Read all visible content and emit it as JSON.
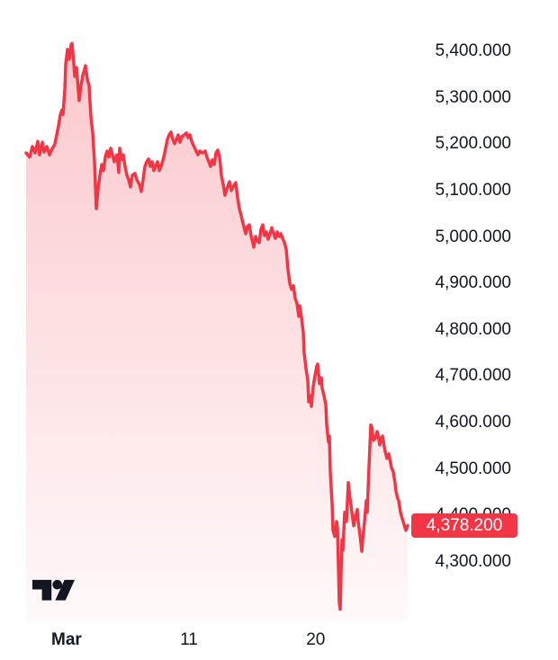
{
  "widget": {
    "background_color": "#ffffff",
    "text_color": "#131722",
    "logo_label": "TradingView",
    "logo_color": "#131722"
  },
  "chart_data": {
    "type": "area",
    "title": "",
    "xlabel": "",
    "ylabel": "",
    "grid": false,
    "legend_position": "none",
    "line_color": "#F23645",
    "fill_top_color": "rgba(242,54,69,0.28)",
    "fill_bottom_color": "rgba(242,54,69,0.03)",
    "badge_color": "#F23645",
    "last_price": 4378.2,
    "last_price_label": "4,378.200",
    "ylim": [
      4174,
      5433
    ],
    "y_axis": {
      "side": "right",
      "tick_values": [
        5400,
        5300,
        5200,
        5100,
        5000,
        4900,
        4800,
        4700,
        4600,
        4500,
        4400,
        4300
      ],
      "tick_labels": [
        "5,400.000",
        "5,300.000",
        "5,200.000",
        "5,100.000",
        "5,000.000",
        "4,900.000",
        "4,800.000",
        "4,700.000",
        "4,600.000",
        "4,500.000",
        "4,400.000",
        "4,300.000"
      ]
    },
    "x_axis": {
      "tick_labels": [
        {
          "label": "Mar",
          "f": 0.106,
          "bold": true
        },
        {
          "label": "11",
          "f": 0.427,
          "bold": false
        },
        {
          "label": "20",
          "f": 0.759,
          "bold": false
        }
      ]
    },
    "series": [
      {
        "name": "price",
        "points": [
          [
            0.0,
            5181
          ],
          [
            0.0094,
            5172
          ],
          [
            0.0165,
            5195
          ],
          [
            0.0236,
            5181
          ],
          [
            0.0307,
            5206
          ],
          [
            0.0354,
            5177
          ],
          [
            0.0425,
            5204
          ],
          [
            0.0472,
            5183
          ],
          [
            0.0542,
            5195
          ],
          [
            0.0613,
            5177
          ],
          [
            0.0684,
            5190
          ],
          [
            0.0755,
            5200
          ],
          [
            0.0802,
            5220
          ],
          [
            0.0849,
            5239
          ],
          [
            0.0896,
            5263
          ],
          [
            0.0943,
            5274
          ],
          [
            0.0967,
            5264
          ],
          [
            0.1014,
            5317
          ],
          [
            0.1038,
            5371
          ],
          [
            0.1085,
            5404
          ],
          [
            0.1132,
            5383
          ],
          [
            0.1179,
            5414
          ],
          [
            0.1203,
            5417
          ],
          [
            0.125,
            5375
          ],
          [
            0.1274,
            5346
          ],
          [
            0.1321,
            5365
          ],
          [
            0.1368,
            5317
          ],
          [
            0.1392,
            5294
          ],
          [
            0.1439,
            5326
          ],
          [
            0.1486,
            5348
          ],
          [
            0.1557,
            5369
          ],
          [
            0.1604,
            5340
          ],
          [
            0.1651,
            5326
          ],
          [
            0.1698,
            5259
          ],
          [
            0.1745,
            5224
          ],
          [
            0.1792,
            5162
          ],
          [
            0.184,
            5061
          ],
          [
            0.1887,
            5104
          ],
          [
            0.1934,
            5133
          ],
          [
            0.1981,
            5156
          ],
          [
            0.2028,
            5143
          ],
          [
            0.2075,
            5172
          ],
          [
            0.2123,
            5185
          ],
          [
            0.217,
            5172
          ],
          [
            0.2217,
            5191
          ],
          [
            0.2264,
            5177
          ],
          [
            0.2311,
            5162
          ],
          [
            0.2382,
            5177
          ],
          [
            0.2429,
            5139
          ],
          [
            0.2453,
            5191
          ],
          [
            0.25,
            5166
          ],
          [
            0.2547,
            5177
          ],
          [
            0.2594,
            5152
          ],
          [
            0.2642,
            5133
          ],
          [
            0.2689,
            5123
          ],
          [
            0.2736,
            5108
          ],
          [
            0.2783,
            5133
          ],
          [
            0.2854,
            5137
          ],
          [
            0.2901,
            5123
          ],
          [
            0.2972,
            5113
          ],
          [
            0.3019,
            5098
          ],
          [
            0.3066,
            5123
          ],
          [
            0.3113,
            5152
          ],
          [
            0.316,
            5162
          ],
          [
            0.3208,
            5168
          ],
          [
            0.3255,
            5152
          ],
          [
            0.3302,
            5162
          ],
          [
            0.3349,
            5143
          ],
          [
            0.3396,
            5152
          ],
          [
            0.3443,
            5162
          ],
          [
            0.3491,
            5143
          ],
          [
            0.3538,
            5152
          ],
          [
            0.3608,
            5172
          ],
          [
            0.3656,
            5191
          ],
          [
            0.3703,
            5210
          ],
          [
            0.375,
            5220
          ],
          [
            0.3797,
            5226
          ],
          [
            0.3844,
            5210
          ],
          [
            0.3892,
            5201
          ],
          [
            0.3939,
            5210
          ],
          [
            0.3986,
            5220
          ],
          [
            0.4033,
            5204
          ],
          [
            0.408,
            5216
          ],
          [
            0.4151,
            5220
          ],
          [
            0.4198,
            5224
          ],
          [
            0.4245,
            5214
          ],
          [
            0.4292,
            5220
          ],
          [
            0.434,
            5206
          ],
          [
            0.4387,
            5197
          ],
          [
            0.4458,
            5185
          ],
          [
            0.4505,
            5177
          ],
          [
            0.4552,
            5185
          ],
          [
            0.4623,
            5181
          ],
          [
            0.4693,
            5185
          ],
          [
            0.4741,
            5172
          ],
          [
            0.4788,
            5162
          ],
          [
            0.4835,
            5152
          ],
          [
            0.4882,
            5166
          ],
          [
            0.4929,
            5156
          ],
          [
            0.4976,
            5181
          ],
          [
            0.5024,
            5187
          ],
          [
            0.5071,
            5172
          ],
          [
            0.5118,
            5133
          ],
          [
            0.5165,
            5113
          ],
          [
            0.5212,
            5090
          ],
          [
            0.5259,
            5104
          ],
          [
            0.533,
            5119
          ],
          [
            0.5377,
            5100
          ],
          [
            0.5425,
            5108
          ],
          [
            0.5495,
            5117
          ],
          [
            0.5542,
            5084
          ],
          [
            0.559,
            5061
          ],
          [
            0.5637,
            5046
          ],
          [
            0.5684,
            5030
          ],
          [
            0.5755,
            5007
          ],
          [
            0.5802,
            5023
          ],
          [
            0.5849,
            5026
          ],
          [
            0.5896,
            5003
          ],
          [
            0.5967,
            4978
          ],
          [
            0.6014,
            5001
          ],
          [
            0.6061,
            4991
          ],
          [
            0.6108,
            4988
          ],
          [
            0.6156,
            5017
          ],
          [
            0.6203,
            5026
          ],
          [
            0.625,
            5003
          ],
          [
            0.6297,
            5011
          ],
          [
            0.6344,
            4995
          ],
          [
            0.6392,
            5007
          ],
          [
            0.6439,
            5020
          ],
          [
            0.6486,
            5007
          ],
          [
            0.6533,
            4997
          ],
          [
            0.658,
            5011
          ],
          [
            0.6627,
            5001
          ],
          [
            0.6675,
            5007
          ],
          [
            0.6722,
            4997
          ],
          [
            0.6769,
            4988
          ],
          [
            0.6816,
            4974
          ],
          [
            0.6863,
            4930
          ],
          [
            0.6911,
            4900
          ],
          [
            0.6958,
            4887
          ],
          [
            0.7005,
            4895
          ],
          [
            0.7052,
            4868
          ],
          [
            0.7099,
            4856
          ],
          [
            0.7146,
            4829
          ],
          [
            0.717,
            4852
          ],
          [
            0.7217,
            4827
          ],
          [
            0.7264,
            4794
          ],
          [
            0.7288,
            4750
          ],
          [
            0.7335,
            4717
          ],
          [
            0.7382,
            4691
          ],
          [
            0.7406,
            4645
          ],
          [
            0.7453,
            4658
          ],
          [
            0.7476,
            4635
          ],
          [
            0.7524,
            4678
          ],
          [
            0.7571,
            4701
          ],
          [
            0.7618,
            4722
          ],
          [
            0.7642,
            4726
          ],
          [
            0.7689,
            4684
          ],
          [
            0.7736,
            4697
          ],
          [
            0.776,
            4674
          ],
          [
            0.7807,
            4658
          ],
          [
            0.7854,
            4639
          ],
          [
            0.7877,
            4595
          ],
          [
            0.7925,
            4558
          ],
          [
            0.7948,
            4571
          ],
          [
            0.7972,
            4494
          ],
          [
            0.8019,
            4426
          ],
          [
            0.8042,
            4368
          ],
          [
            0.809,
            4355
          ],
          [
            0.8137,
            4387
          ],
          [
            0.816,
            4374
          ],
          [
            0.8208,
            4213
          ],
          [
            0.8231,
            4198
          ],
          [
            0.8278,
            4348
          ],
          [
            0.8302,
            4325
          ],
          [
            0.8349,
            4407
          ],
          [
            0.8396,
            4387
          ],
          [
            0.8443,
            4471
          ],
          [
            0.8491,
            4436
          ],
          [
            0.8538,
            4407
          ],
          [
            0.8585,
            4378
          ],
          [
            0.8632,
            4397
          ],
          [
            0.8679,
            4413
          ],
          [
            0.8703,
            4387
          ],
          [
            0.875,
            4358
          ],
          [
            0.8797,
            4323
          ],
          [
            0.8821,
            4348
          ],
          [
            0.8868,
            4387
          ],
          [
            0.8915,
            4432
          ],
          [
            0.8939,
            4407
          ],
          [
            0.8986,
            4504
          ],
          [
            0.9033,
            4595
          ],
          [
            0.9057,
            4591
          ],
          [
            0.9104,
            4562
          ],
          [
            0.9151,
            4566
          ],
          [
            0.9198,
            4581
          ],
          [
            0.9222,
            4575
          ],
          [
            0.9269,
            4552
          ],
          [
            0.9316,
            4568
          ],
          [
            0.934,
            4571
          ],
          [
            0.9387,
            4548
          ],
          [
            0.9411,
            4538
          ],
          [
            0.9458,
            4523
          ],
          [
            0.9505,
            4533
          ],
          [
            0.9552,
            4513
          ],
          [
            0.9575,
            4503
          ],
          [
            0.9623,
            4494
          ],
          [
            0.967,
            4469
          ],
          [
            0.9693,
            4452
          ],
          [
            0.9741,
            4436
          ],
          [
            0.9764,
            4432
          ],
          [
            0.9811,
            4407
          ],
          [
            0.9858,
            4393
          ],
          [
            0.9882,
            4387
          ],
          [
            0.9929,
            4374
          ],
          [
            0.9953,
            4368
          ],
          [
            1.0,
            4378.2
          ]
        ]
      }
    ]
  }
}
